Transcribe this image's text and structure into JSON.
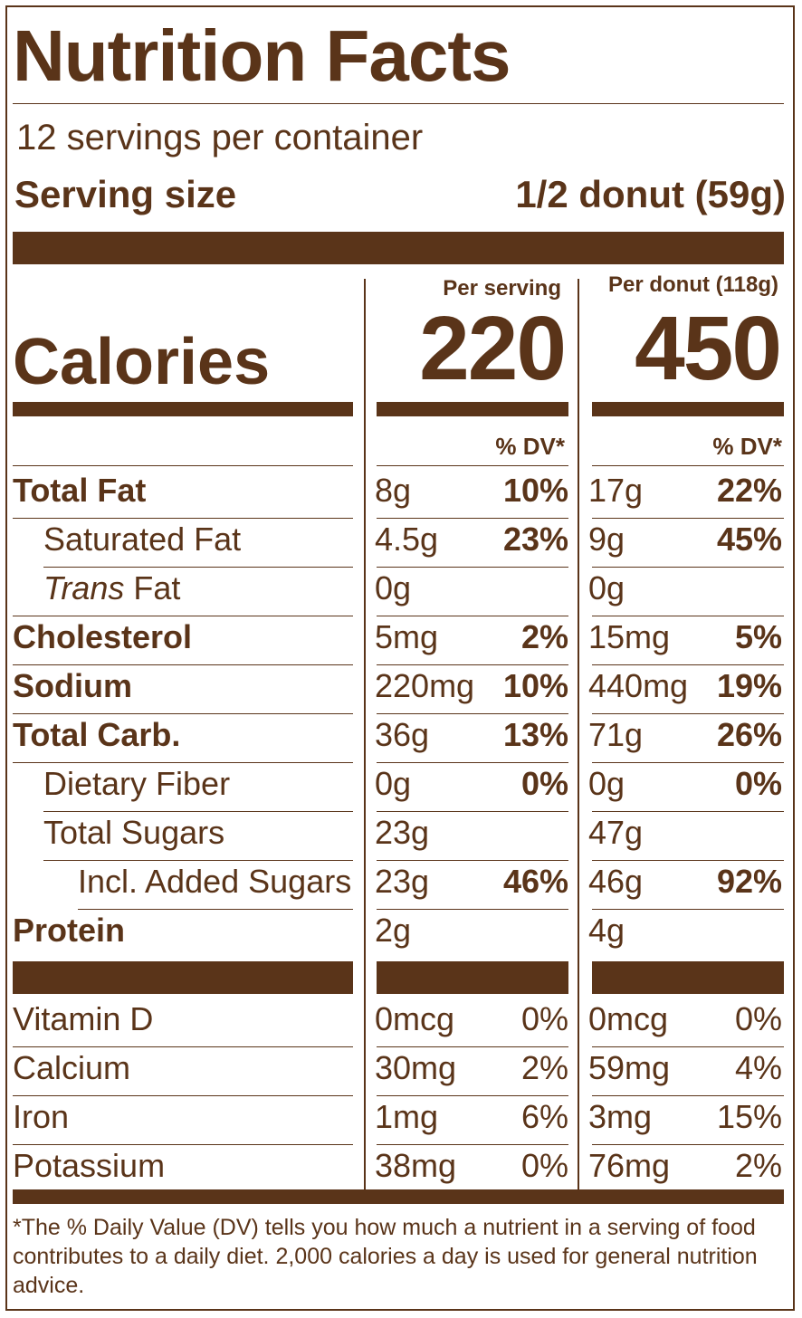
{
  "title": "Nutrition Facts",
  "servings_per_container": "12 servings per container",
  "serving_size_label": "Serving size",
  "serving_size_value": "1/2 donut (59g)",
  "calories_label": "Calories",
  "columns": [
    {
      "header": "Per serving",
      "calories": "220",
      "dv_header": "% DV*"
    },
    {
      "header": "Per donut (118g)",
      "calories": "450",
      "dv_header": "% DV*"
    }
  ],
  "nutrients": [
    {
      "label": "Total Fat",
      "bold": true,
      "indent": 0,
      "c1": "8g",
      "c1dv": "10%",
      "c2": "17g",
      "c2dv": "22%"
    },
    {
      "label": "Saturated Fat",
      "bold": false,
      "indent": 1,
      "c1": "4.5g",
      "c1dv": "23%",
      "c2": "9g",
      "c2dv": "45%"
    },
    {
      "label_italic": "Trans",
      "label": " Fat",
      "bold": false,
      "indent": 1,
      "c1": "0g",
      "c1dv": "",
      "c2": "0g",
      "c2dv": ""
    },
    {
      "label": "Cholesterol",
      "bold": true,
      "indent": 0,
      "c1": "5mg",
      "c1dv": "2%",
      "c2": "15mg",
      "c2dv": "5%"
    },
    {
      "label": "Sodium",
      "bold": true,
      "indent": 0,
      "c1": "220mg",
      "c1dv": "10%",
      "c2": "440mg",
      "c2dv": "19%"
    },
    {
      "label": "Total Carb.",
      "bold": true,
      "indent": 0,
      "c1": "36g",
      "c1dv": "13%",
      "c2": "71g",
      "c2dv": "26%"
    },
    {
      "label": "Dietary Fiber",
      "bold": false,
      "indent": 1,
      "c1": "0g",
      "c1dv": "0%",
      "c2": "0g",
      "c2dv": "0%"
    },
    {
      "label": "Total Sugars",
      "bold": false,
      "indent": 1,
      "c1": "23g",
      "c1dv": "",
      "c2": "47g",
      "c2dv": ""
    },
    {
      "label": "Incl. Added Sugars",
      "bold": false,
      "indent": 2,
      "c1": "23g",
      "c1dv": "46%",
      "c2": "46g",
      "c2dv": "92%"
    },
    {
      "label": "Protein",
      "bold": true,
      "indent": 0,
      "c1": "2g",
      "c1dv": "",
      "c2": "4g",
      "c2dv": ""
    }
  ],
  "vitamins": [
    {
      "label": "Vitamin D",
      "c1": "0mcg",
      "c1dv": "0%",
      "c2": "0mcg",
      "c2dv": "0%"
    },
    {
      "label": "Calcium",
      "c1": "30mg",
      "c1dv": "2%",
      "c2": "59mg",
      "c2dv": "4%"
    },
    {
      "label": "Iron",
      "c1": "1mg",
      "c1dv": "6%",
      "c2": "3mg",
      "c2dv": "15%"
    },
    {
      "label": "Potassium",
      "c1": "38mg",
      "c1dv": "0%",
      "c2": "76mg",
      "c2dv": "2%"
    }
  ],
  "footnote": "*The % Daily Value (DV) tells you how much a nutrient in a serving of food contributes to a daily diet. 2,000 calories a day is used for general nutrition advice."
}
